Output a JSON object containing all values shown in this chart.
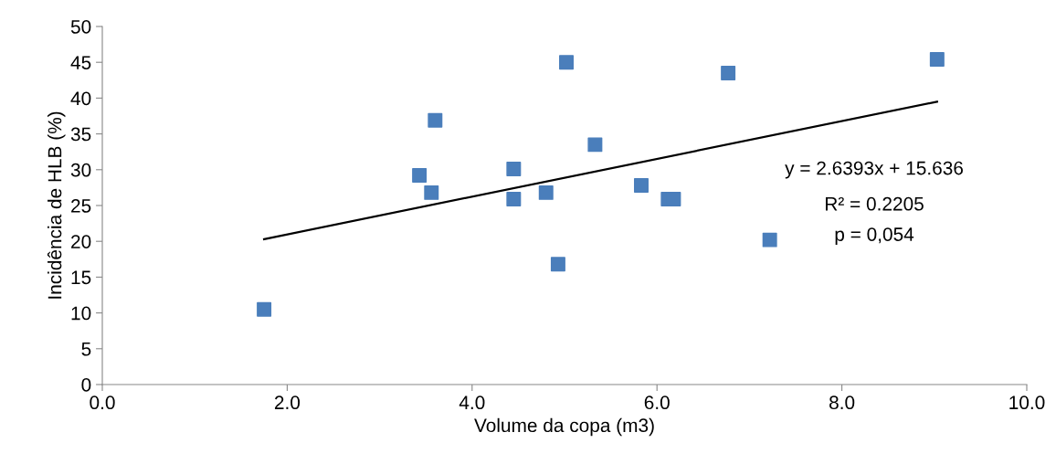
{
  "chart_data": {
    "type": "scatter",
    "xlabel": "Volume da copa (m3)",
    "ylabel": "Incidência de HLB (%)",
    "xlim": [
      0,
      10
    ],
    "ylim": [
      0,
      50
    ],
    "xticks": [
      {
        "value": 0,
        "label": "0.0"
      },
      {
        "value": 2,
        "label": "2.0"
      },
      {
        "value": 4,
        "label": "4.0"
      },
      {
        "value": 6,
        "label": "6.0"
      },
      {
        "value": 8,
        "label": "8.0"
      },
      {
        "value": 10,
        "label": "10.0"
      }
    ],
    "yticks": [
      0,
      5,
      10,
      15,
      20,
      25,
      30,
      35,
      40,
      45,
      50
    ],
    "grid": false,
    "legend": false,
    "series": [
      {
        "marker": "square",
        "color": "#4a7ebb",
        "x": [
          1.75,
          3.43,
          3.56,
          3.6,
          4.45,
          4.45,
          4.8,
          4.93,
          5.02,
          5.33,
          5.83,
          6.12,
          6.18,
          6.77,
          7.22,
          9.03
        ],
        "values": [
          10.5,
          29.2,
          26.8,
          36.9,
          30.1,
          25.9,
          26.8,
          16.8,
          45.0,
          33.5,
          27.8,
          25.9,
          25.9,
          43.5,
          20.2,
          45.4
        ]
      },
      {
        "type": "line",
        "marker": "none",
        "color": "#000000",
        "x": [
          1.75,
          9.03
        ],
        "values": [
          20.3,
          39.5
        ]
      }
    ],
    "annotations": [
      "y = 2.6393x + 15.636",
      "R² = 0.2205",
      "p = 0,054"
    ]
  }
}
